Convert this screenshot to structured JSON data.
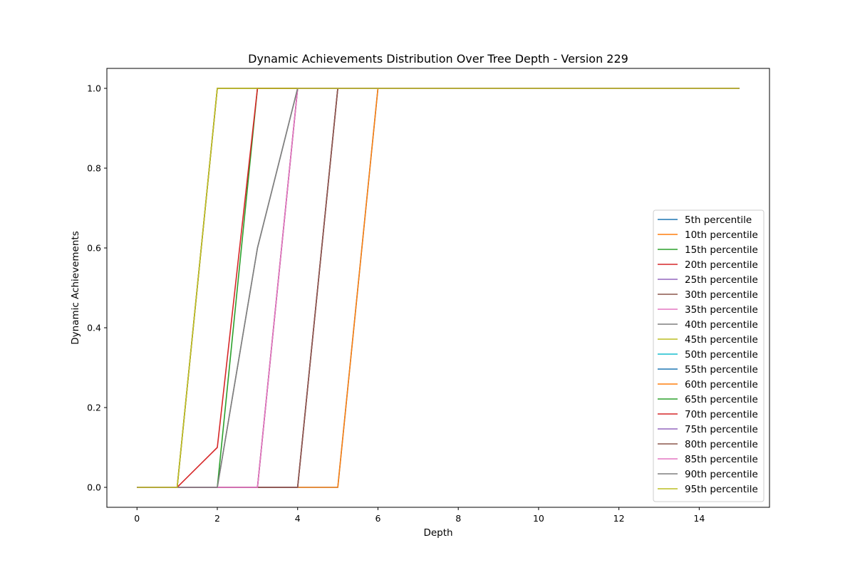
{
  "chart_data": {
    "type": "line",
    "title": "Dynamic Achievements Distribution Over Tree Depth - Version 229",
    "xlabel": "Depth",
    "ylabel": "Dynamic Achievements",
    "xlim": [
      -0.75,
      15.75
    ],
    "ylim": [
      -0.05,
      1.05
    ],
    "xticks": [
      0,
      2,
      4,
      6,
      8,
      10,
      12,
      14
    ],
    "yticks": [
      0.0,
      0.2,
      0.4,
      0.6,
      0.8,
      1.0
    ],
    "ytick_labels": [
      "0.0",
      "0.2",
      "0.4",
      "0.6",
      "0.8",
      "1.0"
    ],
    "grid": false,
    "legend_position": "lower-right",
    "x": [
      0,
      1,
      2,
      3,
      4,
      5,
      6,
      7,
      8,
      9,
      10,
      11,
      12,
      13,
      14,
      15
    ],
    "series": [
      {
        "name": "5th percentile",
        "color": "#1f77b4",
        "values": [
          0,
          0,
          0,
          0,
          0,
          0,
          1,
          1,
          1,
          1,
          1,
          1,
          1,
          1,
          1,
          1
        ]
      },
      {
        "name": "10th percentile",
        "color": "#ff7f0e",
        "values": [
          0,
          0,
          0,
          0,
          0,
          0,
          1,
          1,
          1,
          1,
          1,
          1,
          1,
          1,
          1,
          1
        ]
      },
      {
        "name": "15th percentile",
        "color": "#2ca02c",
        "values": [
          0,
          0,
          0,
          0,
          0,
          1,
          1,
          1,
          1,
          1,
          1,
          1,
          1,
          1,
          1,
          1
        ]
      },
      {
        "name": "20th percentile",
        "color": "#d62728",
        "values": [
          0,
          0,
          0,
          0,
          0,
          1,
          1,
          1,
          1,
          1,
          1,
          1,
          1,
          1,
          1,
          1
        ]
      },
      {
        "name": "25th percentile",
        "color": "#9467bd",
        "values": [
          0,
          0,
          0,
          0,
          0,
          1,
          1,
          1,
          1,
          1,
          1,
          1,
          1,
          1,
          1,
          1
        ]
      },
      {
        "name": "30th percentile",
        "color": "#8c564b",
        "values": [
          0,
          0,
          0,
          0,
          0,
          1,
          1,
          1,
          1,
          1,
          1,
          1,
          1,
          1,
          1,
          1
        ]
      },
      {
        "name": "35th percentile",
        "color": "#e377c2",
        "values": [
          0,
          0,
          0,
          0,
          1,
          1,
          1,
          1,
          1,
          1,
          1,
          1,
          1,
          1,
          1,
          1
        ]
      },
      {
        "name": "40th percentile",
        "color": "#7f7f7f",
        "values": [
          0,
          0,
          0,
          0.6,
          1,
          1,
          1,
          1,
          1,
          1,
          1,
          1,
          1,
          1,
          1,
          1
        ]
      },
      {
        "name": "45th percentile",
        "color": "#bcbd22",
        "values": [
          0,
          0,
          1,
          1,
          1,
          1,
          1,
          1,
          1,
          1,
          1,
          1,
          1,
          1,
          1,
          1
        ]
      },
      {
        "name": "50th percentile",
        "color": "#17becf",
        "values": [
          0,
          0,
          1,
          1,
          1,
          1,
          1,
          1,
          1,
          1,
          1,
          1,
          1,
          1,
          1,
          1
        ]
      },
      {
        "name": "55th percentile",
        "color": "#1f77b4",
        "values": [
          0,
          0,
          1,
          1,
          1,
          1,
          1,
          1,
          1,
          1,
          1,
          1,
          1,
          1,
          1,
          1
        ]
      },
      {
        "name": "60th percentile",
        "color": "#ff7f0e",
        "values": [
          0,
          0,
          1,
          1,
          1,
          1,
          1,
          1,
          1,
          1,
          1,
          1,
          1,
          1,
          1,
          1
        ]
      },
      {
        "name": "65th percentile",
        "color": "#2ca02c",
        "values": [
          0,
          0,
          0,
          1,
          1,
          1,
          1,
          1,
          1,
          1,
          1,
          1,
          1,
          1,
          1,
          1
        ]
      },
      {
        "name": "70th percentile",
        "color": "#d62728",
        "values": [
          0,
          0,
          0.1,
          1,
          1,
          1,
          1,
          1,
          1,
          1,
          1,
          1,
          1,
          1,
          1,
          1
        ]
      },
      {
        "name": "75th percentile",
        "color": "#9467bd",
        "values": [
          0,
          0,
          0,
          0,
          1,
          1,
          1,
          1,
          1,
          1,
          1,
          1,
          1,
          1,
          1,
          1
        ]
      },
      {
        "name": "80th percentile",
        "color": "#8c564b",
        "values": [
          0,
          0,
          0,
          0,
          1,
          1,
          1,
          1,
          1,
          1,
          1,
          1,
          1,
          1,
          1,
          1
        ]
      },
      {
        "name": "85th percentile",
        "color": "#e377c2",
        "values": [
          0,
          0,
          0,
          0,
          1,
          1,
          1,
          1,
          1,
          1,
          1,
          1,
          1,
          1,
          1,
          1
        ]
      },
      {
        "name": "90th percentile",
        "color": "#7f7f7f",
        "values": [
          0,
          0,
          0,
          0.6,
          1,
          1,
          1,
          1,
          1,
          1,
          1,
          1,
          1,
          1,
          1,
          1
        ]
      },
      {
        "name": "95th percentile",
        "color": "#bcbd22",
        "values": [
          0,
          0,
          1,
          1,
          1,
          1,
          1,
          1,
          1,
          1,
          1,
          1,
          1,
          1,
          1,
          1
        ]
      }
    ]
  }
}
